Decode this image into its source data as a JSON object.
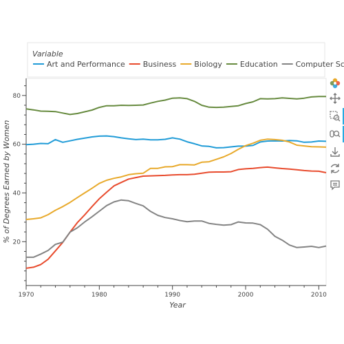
{
  "chart_data": {
    "type": "line",
    "title": "",
    "xlabel": "Year",
    "ylabel": "% of Degrees Earned by Women",
    "xlim": [
      1970,
      2011
    ],
    "ylim": [
      2,
      87
    ],
    "x_ticks": [
      1970,
      1980,
      1990,
      2000,
      2010
    ],
    "y_ticks": [
      20,
      40,
      60,
      80
    ],
    "legend_title": "Variable",
    "legend_position": "top",
    "grid": false,
    "x": [
      1970,
      1971,
      1972,
      1973,
      1974,
      1975,
      1976,
      1977,
      1978,
      1979,
      1980,
      1981,
      1982,
      1983,
      1984,
      1985,
      1986,
      1987,
      1988,
      1989,
      1990,
      1991,
      1992,
      1993,
      1994,
      1995,
      1996,
      1997,
      1998,
      1999,
      2000,
      2001,
      2002,
      2003,
      2004,
      2005,
      2006,
      2007,
      2008,
      2009,
      2010,
      2011
    ],
    "series": [
      {
        "name": "Art and Performance",
        "color": "#1f9bd7",
        "values": [
          59.8,
          60.0,
          60.3,
          60.2,
          61.9,
          60.8,
          61.4,
          62.0,
          62.5,
          63.0,
          63.3,
          63.4,
          63.1,
          62.6,
          62.2,
          61.9,
          62.1,
          61.8,
          61.8,
          62.0,
          62.6,
          62.1,
          61.0,
          60.2,
          59.3,
          59.1,
          58.5,
          58.6,
          58.9,
          59.2,
          59.2,
          59.5,
          60.9,
          61.3,
          61.4,
          61.3,
          61.5,
          61.4,
          60.8,
          60.9,
          61.3,
          61.2
        ]
      },
      {
        "name": "Business",
        "color": "#e84a2c",
        "values": [
          9.1,
          9.5,
          10.6,
          12.8,
          16.2,
          19.7,
          23.9,
          27.8,
          31.0,
          34.4,
          37.6,
          40.3,
          42.9,
          44.3,
          45.7,
          46.3,
          46.9,
          47.0,
          47.1,
          47.2,
          47.4,
          47.5,
          47.5,
          47.7,
          48.1,
          48.5,
          48.6,
          48.6,
          48.7,
          49.6,
          49.9,
          50.1,
          50.4,
          50.6,
          50.3,
          50.0,
          49.8,
          49.5,
          49.2,
          49.0,
          48.9,
          48.3
        ]
      },
      {
        "name": "Biology",
        "color": "#e8a92a",
        "values": [
          29.1,
          29.4,
          29.8,
          31.1,
          32.9,
          34.4,
          36.1,
          38.1,
          40.0,
          41.9,
          43.9,
          45.2,
          46.0,
          46.6,
          47.5,
          47.9,
          48.1,
          50.1,
          50.1,
          50.7,
          50.8,
          51.6,
          51.6,
          51.5,
          52.6,
          52.8,
          53.8,
          54.8,
          56.2,
          57.9,
          59.4,
          60.4,
          61.6,
          62.1,
          61.9,
          61.6,
          60.9,
          59.6,
          59.3,
          59.0,
          58.9,
          58.8
        ]
      },
      {
        "name": "Education",
        "color": "#668a3e",
        "values": [
          74.5,
          74.1,
          73.6,
          73.5,
          73.4,
          72.8,
          72.2,
          72.6,
          73.3,
          74.0,
          75.1,
          75.8,
          75.8,
          76.0,
          75.9,
          76.0,
          76.1,
          76.9,
          77.6,
          78.1,
          78.9,
          79.0,
          78.7,
          77.6,
          76.0,
          75.2,
          75.1,
          75.2,
          75.5,
          75.8,
          76.7,
          77.4,
          78.7,
          78.6,
          78.7,
          79.0,
          78.8,
          78.6,
          78.9,
          79.4,
          79.6,
          79.6
        ]
      },
      {
        "name": "Computer Science",
        "color": "#838383",
        "values": [
          13.6,
          13.6,
          14.9,
          16.4,
          18.9,
          19.8,
          23.9,
          25.7,
          28.1,
          30.2,
          32.5,
          34.8,
          36.3,
          37.1,
          36.8,
          35.7,
          34.7,
          32.4,
          30.8,
          29.9,
          29.4,
          28.7,
          28.2,
          28.5,
          28.5,
          27.5,
          27.1,
          26.8,
          27.0,
          28.1,
          27.7,
          27.6,
          27.0,
          25.1,
          22.2,
          20.6,
          18.6,
          17.6,
          17.8,
          18.1,
          17.6,
          18.2
        ]
      }
    ]
  }
}
